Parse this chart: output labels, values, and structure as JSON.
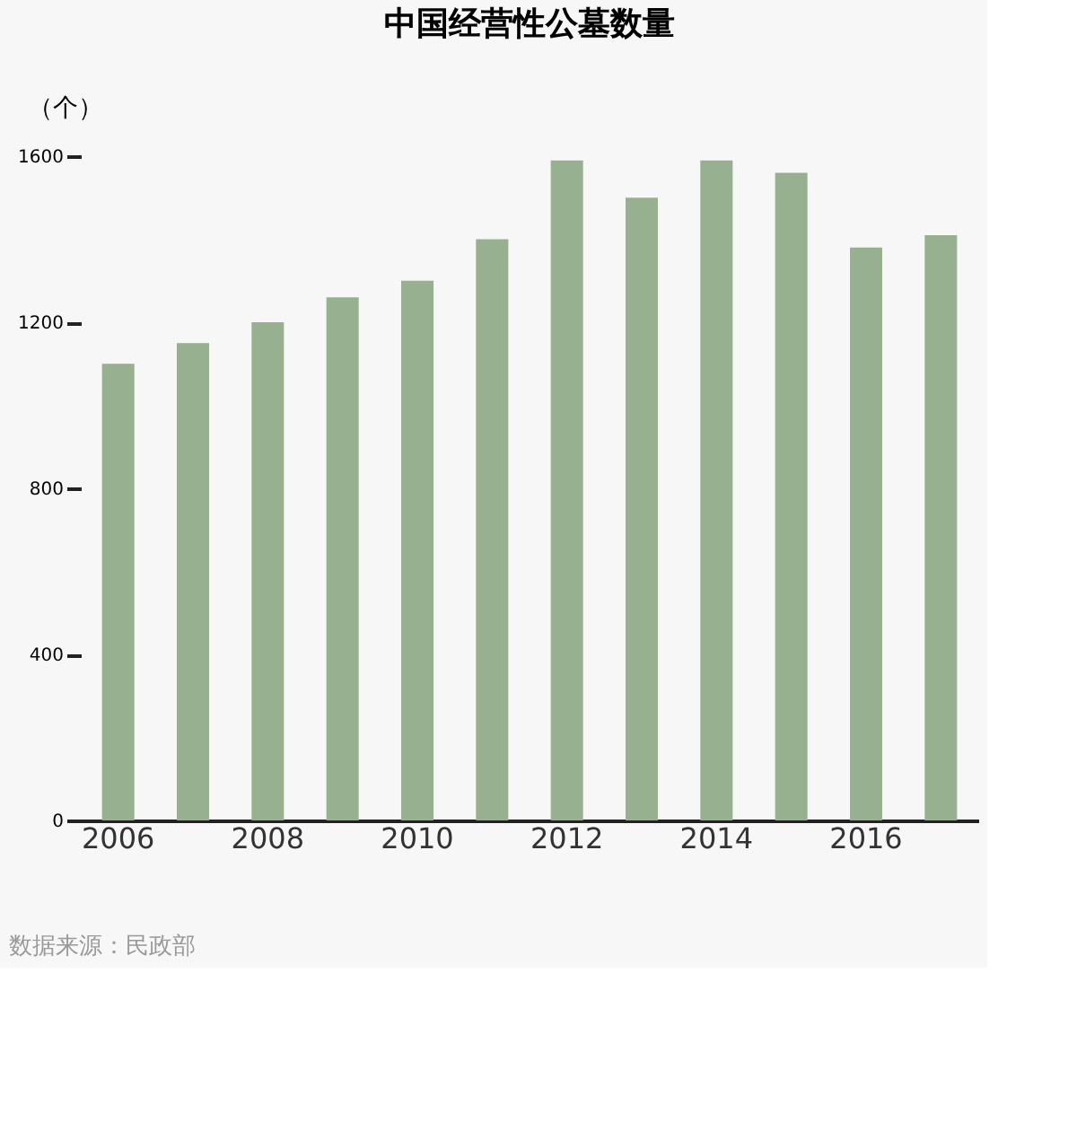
{
  "chart_data": {
    "type": "bar",
    "title": "中国经营性公墓数量",
    "ylabel": "（个）",
    "categories": [
      "2006",
      null,
      "2008",
      null,
      "2010",
      null,
      "2012",
      null,
      "2014",
      null,
      "2016",
      null
    ],
    "values": [
      1100,
      1150,
      1200,
      1260,
      1300,
      1400,
      1590,
      1500,
      1590,
      1560,
      1380,
      1410
    ],
    "color": "#97b08f",
    "ylim": [
      0,
      1600
    ],
    "yticks": [
      0,
      400,
      800,
      1200,
      1600
    ],
    "grid": false,
    "annotations": [
      "数据来源：民政部"
    ]
  }
}
